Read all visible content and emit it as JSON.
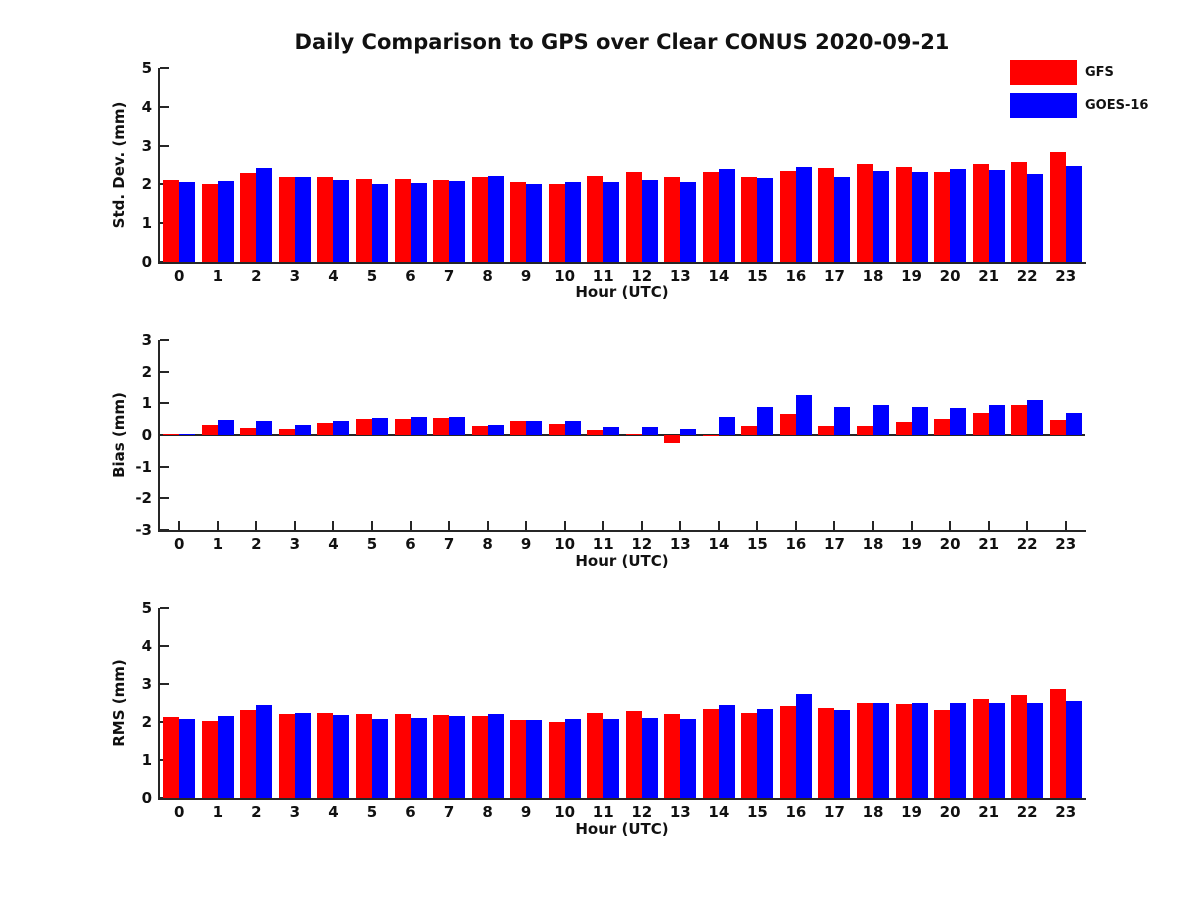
{
  "title": "Daily Comparison to GPS over Clear CONUS 2020-09-21",
  "legend": {
    "position": "top-right",
    "items": [
      {
        "label": "GFS",
        "color": "#ff0000"
      },
      {
        "label": "GOES-16",
        "color": "#0000ff"
      }
    ]
  },
  "colors": {
    "gfs": "#ff0000",
    "goes16": "#0000ff",
    "axis": "#262626",
    "text": "#111111"
  },
  "chart_data": [
    {
      "type": "bar",
      "panel": "std_dev",
      "title": "",
      "xlabel": "Hour (UTC)",
      "ylabel": "Std. Dev. (mm)",
      "ylim": [
        0,
        5
      ],
      "yticks": [
        0,
        1,
        2,
        3,
        4,
        5
      ],
      "grid": false,
      "legend_position": "top-right",
      "categories": [
        "0",
        "1",
        "2",
        "3",
        "4",
        "5",
        "6",
        "7",
        "8",
        "9",
        "10",
        "11",
        "12",
        "13",
        "14",
        "15",
        "16",
        "17",
        "18",
        "19",
        "20",
        "21",
        "22",
        "23"
      ],
      "series": [
        {
          "name": "GFS",
          "color": "#ff0000",
          "values": [
            2.12,
            2.02,
            2.3,
            2.2,
            2.2,
            2.14,
            2.14,
            2.12,
            2.18,
            2.05,
            2.02,
            2.22,
            2.31,
            2.2,
            2.33,
            2.2,
            2.35,
            2.41,
            2.52,
            2.44,
            2.32,
            2.52,
            2.57,
            2.84
          ]
        },
        {
          "name": "GOES-16",
          "color": "#0000ff",
          "values": [
            2.07,
            2.1,
            2.43,
            2.2,
            2.12,
            2.02,
            2.03,
            2.08,
            2.21,
            2.02,
            2.07,
            2.05,
            2.11,
            2.07,
            2.4,
            2.17,
            2.45,
            2.2,
            2.35,
            2.31,
            2.39,
            2.38,
            2.26,
            2.48
          ]
        }
      ]
    },
    {
      "type": "bar",
      "panel": "bias",
      "title": "",
      "xlabel": "Hour (UTC)",
      "ylabel": "Bias (mm)",
      "ylim": [
        -3,
        3
      ],
      "yticks": [
        -3,
        -2,
        -1,
        0,
        1,
        2,
        3
      ],
      "grid": false,
      "zero_line": true,
      "categories": [
        "0",
        "1",
        "2",
        "3",
        "4",
        "5",
        "6",
        "7",
        "8",
        "9",
        "10",
        "11",
        "12",
        "13",
        "14",
        "15",
        "16",
        "17",
        "18",
        "19",
        "20",
        "21",
        "22",
        "23"
      ],
      "series": [
        {
          "name": "GFS",
          "color": "#ff0000",
          "values": [
            0.02,
            0.32,
            0.22,
            0.18,
            0.37,
            0.51,
            0.5,
            0.55,
            0.27,
            0.43,
            0.36,
            0.17,
            0.02,
            -0.24,
            -0.03,
            0.27,
            0.65,
            0.28,
            0.3,
            0.4,
            0.5,
            0.7,
            0.95,
            0.48
          ]
        },
        {
          "name": "GOES-16",
          "color": "#0000ff",
          "values": [
            0.03,
            0.47,
            0.44,
            0.32,
            0.43,
            0.54,
            0.57,
            0.56,
            0.31,
            0.45,
            0.44,
            0.25,
            0.26,
            0.19,
            0.58,
            0.88,
            1.25,
            0.87,
            0.95,
            0.9,
            0.85,
            0.95,
            1.12,
            0.7
          ]
        }
      ]
    },
    {
      "type": "bar",
      "panel": "rms",
      "title": "",
      "xlabel": "Hour (UTC)",
      "ylabel": "RMS (mm)",
      "ylim": [
        0,
        5
      ],
      "yticks": [
        0,
        1,
        2,
        3,
        4,
        5
      ],
      "grid": false,
      "categories": [
        "0",
        "1",
        "2",
        "3",
        "4",
        "5",
        "6",
        "7",
        "8",
        "9",
        "10",
        "11",
        "12",
        "13",
        "14",
        "15",
        "16",
        "17",
        "18",
        "19",
        "20",
        "21",
        "22",
        "23"
      ],
      "series": [
        {
          "name": "GFS",
          "color": "#ff0000",
          "values": [
            2.13,
            2.02,
            2.31,
            2.22,
            2.25,
            2.2,
            2.21,
            2.18,
            2.16,
            2.04,
            2.01,
            2.24,
            2.28,
            2.2,
            2.33,
            2.25,
            2.42,
            2.38,
            2.51,
            2.47,
            2.32,
            2.6,
            2.72,
            2.86
          ]
        },
        {
          "name": "GOES-16",
          "color": "#0000ff",
          "values": [
            2.07,
            2.15,
            2.46,
            2.24,
            2.18,
            2.09,
            2.11,
            2.16,
            2.21,
            2.04,
            2.07,
            2.07,
            2.1,
            2.07,
            2.44,
            2.33,
            2.74,
            2.32,
            2.49,
            2.5,
            2.51,
            2.51,
            2.51,
            2.54
          ]
        }
      ]
    }
  ]
}
